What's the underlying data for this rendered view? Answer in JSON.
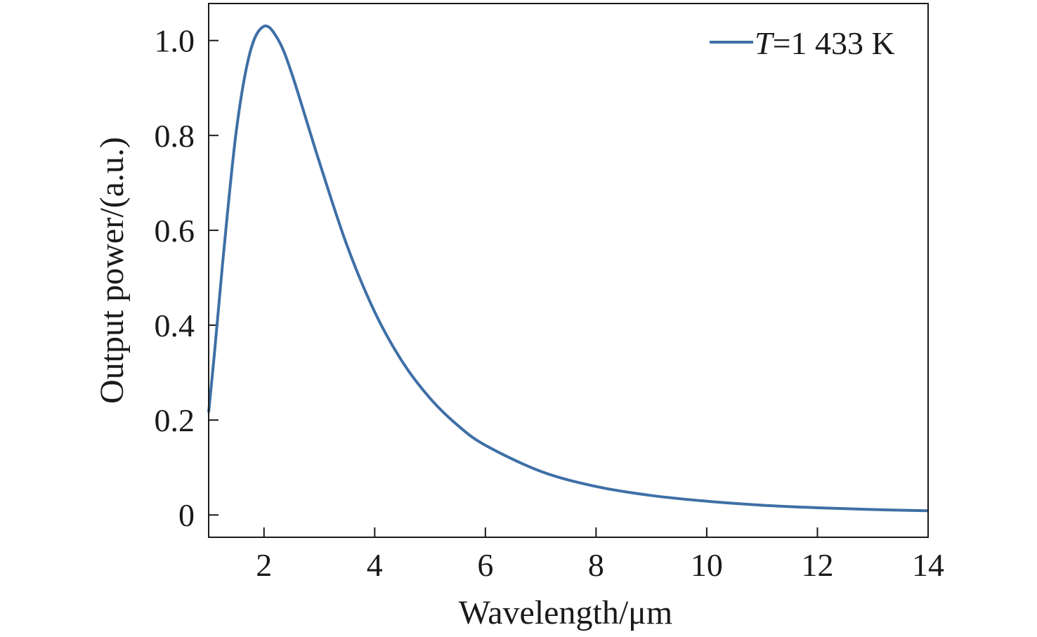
{
  "chart_data": {
    "type": "line",
    "title": "",
    "xlabel": "Wavelength/μm",
    "ylabel": "Output power/(a.u.)",
    "xlim": [
      1,
      14
    ],
    "ylim": [
      -0.047,
      1.078
    ],
    "xticks": [
      2,
      4,
      6,
      8,
      10,
      12,
      14
    ],
    "xtick_labels": [
      "2",
      "4",
      "6",
      "8",
      "10",
      "12",
      "14"
    ],
    "yticks": [
      0,
      0.2,
      0.4,
      0.6,
      0.8,
      1.0
    ],
    "ytick_labels": [
      "0",
      "0.2",
      "0.4",
      "0.6",
      "0.8",
      "1.0"
    ],
    "grid": false,
    "legend_position": "top-right",
    "series": [
      {
        "name": "T=1 433 K",
        "legend_var": "T",
        "legend_rest": "=1 433 K",
        "color": "#3e6fa6",
        "x": [
          1,
          1.1,
          1.25,
          1.5,
          1.75,
          2,
          2.25,
          2.5,
          3,
          3.5,
          4,
          4.5,
          5,
          5.5,
          6,
          7,
          8,
          9,
          10,
          11,
          12,
          13,
          14
        ],
        "y": [
          0.216,
          0.335,
          0.528,
          0.81,
          0.976,
          1.03,
          1.003,
          0.931,
          0.744,
          0.568,
          0.428,
          0.323,
          0.246,
          0.189,
          0.147,
          0.092,
          0.06,
          0.041,
          0.029,
          0.0206,
          0.0152,
          0.0115,
          0.0088
        ]
      }
    ]
  }
}
